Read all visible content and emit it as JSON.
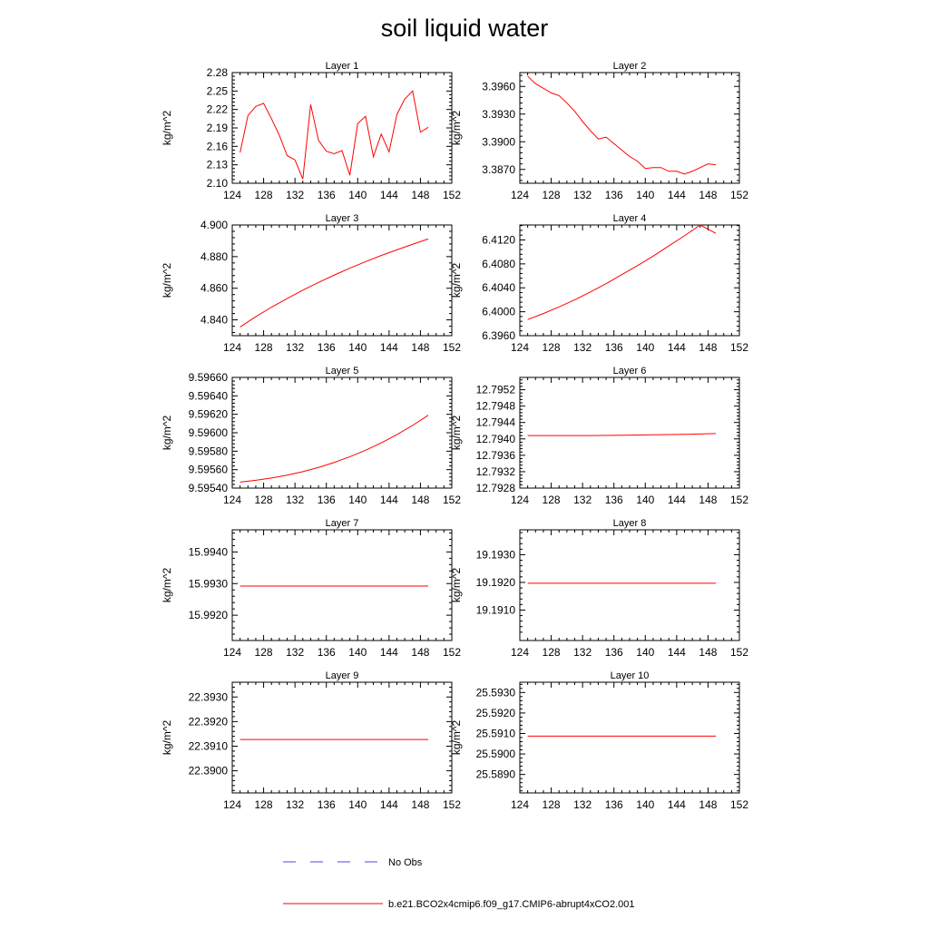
{
  "title": "soil liquid water",
  "legend": [
    {
      "label": "No Obs",
      "color": "#4a4ad8",
      "dash": "dashed"
    },
    {
      "label": "b.e21.BCO2x4cmip6.f09_g17.CMIP6-abrupt4xCO2.001",
      "color": "#ff0000",
      "dash": "solid"
    }
  ],
  "chart_data": [
    {
      "type": "line",
      "title": "Layer 1",
      "ylabel": "kg/m^2",
      "xlim": [
        124,
        152
      ],
      "xticks": [
        "124",
        "128",
        "132",
        "136",
        "140",
        "144",
        "148",
        "152"
      ],
      "ylim": [
        2.1,
        2.28
      ],
      "yticks": [
        "2.10",
        "2.13",
        "2.16",
        "2.19",
        "2.22",
        "2.25",
        "2.28"
      ],
      "series": [
        {
          "color": "#ff0000",
          "x": [
            125,
            126,
            127,
            128,
            129,
            130,
            131,
            132,
            133,
            134,
            135,
            136,
            137,
            138,
            139,
            140,
            141,
            142,
            143,
            144,
            145,
            146,
            147,
            148,
            149
          ],
          "y": [
            2.15,
            2.21,
            2.225,
            2.23,
            2.205,
            2.178,
            2.145,
            2.138,
            2.107,
            2.228,
            2.17,
            2.152,
            2.148,
            2.153,
            2.113,
            2.197,
            2.209,
            2.143,
            2.18,
            2.151,
            2.212,
            2.237,
            2.25,
            2.183,
            2.191
          ]
        }
      ]
    },
    {
      "type": "line",
      "title": "Layer 2",
      "ylabel": "kg/m^2",
      "xlim": [
        124,
        152
      ],
      "xticks": [
        "124",
        "128",
        "132",
        "136",
        "140",
        "144",
        "148",
        "152"
      ],
      "ylim": [
        3.3855,
        3.3975
      ],
      "yticks": [
        "3.3870",
        "3.3900",
        "3.3930",
        "3.3960"
      ],
      "series": [
        {
          "color": "#ff0000",
          "x": [
            125,
            126,
            127,
            128,
            129,
            130,
            131,
            132,
            133,
            134,
            135,
            136,
            137,
            138,
            139,
            140,
            141,
            142,
            143,
            144,
            145,
            146,
            147,
            148,
            149
          ],
          "y": [
            3.3971,
            3.3963,
            3.3958,
            3.3953,
            3.395,
            3.3942,
            3.3933,
            3.3922,
            3.3912,
            3.3903,
            3.3905,
            3.3898,
            3.3891,
            3.3884,
            3.3879,
            3.3871,
            3.3872,
            3.3872,
            3.3868,
            3.3868,
            3.3865,
            3.3868,
            3.3872,
            3.3876,
            3.3875
          ]
        }
      ]
    },
    {
      "type": "line",
      "title": "Layer 3",
      "ylabel": "kg/m^2",
      "xlim": [
        124,
        152
      ],
      "xticks": [
        "124",
        "128",
        "132",
        "136",
        "140",
        "144",
        "148",
        "152"
      ],
      "ylim": [
        4.83,
        4.9
      ],
      "yticks": [
        "4.840",
        "4.860",
        "4.880",
        "4.900"
      ],
      "series": [
        {
          "color": "#ff0000",
          "x": [
            125,
            127,
            129,
            131,
            133,
            135,
            137,
            139,
            141,
            143,
            145,
            147,
            149
          ],
          "y": [
            4.8355,
            4.842,
            4.848,
            4.8535,
            4.8588,
            4.8637,
            4.8683,
            4.8727,
            4.8768,
            4.8807,
            4.8843,
            4.8878,
            4.8912
          ]
        }
      ]
    },
    {
      "type": "line",
      "title": "Layer 4",
      "ylabel": "kg/m^2",
      "xlim": [
        124,
        152
      ],
      "xticks": [
        "124",
        "128",
        "132",
        "136",
        "140",
        "144",
        "148",
        "152"
      ],
      "ylim": [
        6.396,
        6.4145
      ],
      "yticks": [
        "6.3960",
        "6.4000",
        "6.4040",
        "6.4080",
        "6.4120"
      ],
      "series": [
        {
          "color": "#ff0000",
          "x": [
            125,
            127,
            129,
            131,
            133,
            135,
            137,
            139,
            141,
            143,
            145,
            147,
            149
          ],
          "y": [
            6.3987,
            6.3997,
            6.4008,
            6.402,
            6.4033,
            6.4047,
            6.4062,
            6.4077,
            6.4093,
            6.411,
            6.4127,
            6.4145,
            6.4131
          ]
        }
      ]
    },
    {
      "type": "line",
      "title": "Layer 5",
      "ylabel": "kg/m^2",
      "xlim": [
        124,
        152
      ],
      "xticks": [
        "124",
        "128",
        "132",
        "136",
        "140",
        "144",
        "148",
        "152"
      ],
      "ylim": [
        9.5954,
        9.5966
      ],
      "yticks": [
        "9.59540",
        "9.59560",
        "9.59580",
        "9.59600",
        "9.59620",
        "9.59640",
        "9.59660"
      ],
      "series": [
        {
          "color": "#ff0000",
          "x": [
            125,
            127,
            129,
            131,
            133,
            135,
            137,
            139,
            141,
            143,
            145,
            147,
            149
          ],
          "y": [
            9.595465,
            9.595485,
            9.59551,
            9.59554,
            9.595578,
            9.595624,
            9.595678,
            9.59574,
            9.59581,
            9.59589,
            9.59598,
            9.59608,
            9.59619
          ]
        }
      ]
    },
    {
      "type": "line",
      "title": "Layer 6",
      "ylabel": "kg/m^2",
      "xlim": [
        124,
        152
      ],
      "xticks": [
        "124",
        "128",
        "132",
        "136",
        "140",
        "144",
        "148",
        "152"
      ],
      "ylim": [
        12.7928,
        12.7955
      ],
      "yticks": [
        "12.7928",
        "12.7932",
        "12.7936",
        "12.7940",
        "12.7944",
        "12.7948",
        "12.7952"
      ],
      "series": [
        {
          "color": "#ff0000",
          "x": [
            125,
            129,
            133,
            137,
            141,
            145,
            149
          ],
          "y": [
            12.79408,
            12.79408,
            12.79408,
            12.79409,
            12.7941,
            12.79411,
            12.79413
          ]
        }
      ]
    },
    {
      "type": "line",
      "title": "Layer 7",
      "ylabel": "kg/m^2",
      "xlim": [
        124,
        152
      ],
      "xticks": [
        "124",
        "128",
        "132",
        "136",
        "140",
        "144",
        "148",
        "152"
      ],
      "ylim": [
        15.9912,
        15.9947
      ],
      "yticks": [
        "15.9920",
        "15.9930",
        "15.9940"
      ],
      "series": [
        {
          "color": "#ff0000",
          "x": [
            125,
            149
          ],
          "y": [
            15.99292,
            15.99292
          ]
        }
      ]
    },
    {
      "type": "line",
      "title": "Layer 8",
      "ylabel": "kg/m^2",
      "xlim": [
        124,
        152
      ],
      "xticks": [
        "124",
        "128",
        "132",
        "136",
        "140",
        "144",
        "148",
        "152"
      ],
      "ylim": [
        19.1899,
        19.1939
      ],
      "yticks": [
        "19.1910",
        "19.1920",
        "19.1930"
      ],
      "series": [
        {
          "color": "#ff0000",
          "x": [
            125,
            149
          ],
          "y": [
            19.19197,
            19.19197
          ]
        }
      ]
    },
    {
      "type": "line",
      "title": "Layer 9",
      "ylabel": "kg/m^2",
      "xlim": [
        124,
        152
      ],
      "xticks": [
        "124",
        "128",
        "132",
        "136",
        "140",
        "144",
        "148",
        "152"
      ],
      "ylim": [
        22.3891,
        22.3936
      ],
      "yticks": [
        "22.3900",
        "22.3910",
        "22.3920",
        "22.3930"
      ],
      "series": [
        {
          "color": "#ff0000",
          "x": [
            125,
            149
          ],
          "y": [
            22.39127,
            22.39127
          ]
        }
      ]
    },
    {
      "type": "line",
      "title": "Layer 10",
      "ylabel": "kg/m^2",
      "xlim": [
        124,
        152
      ],
      "xticks": [
        "124",
        "128",
        "132",
        "136",
        "140",
        "144",
        "148",
        "152"
      ],
      "ylim": [
        25.5881,
        25.5935
      ],
      "yticks": [
        "25.5890",
        "25.5900",
        "25.5910",
        "25.5920",
        "25.5930"
      ],
      "series": [
        {
          "color": "#ff0000",
          "x": [
            125,
            149
          ],
          "y": [
            25.59087,
            25.59087
          ]
        }
      ]
    }
  ]
}
